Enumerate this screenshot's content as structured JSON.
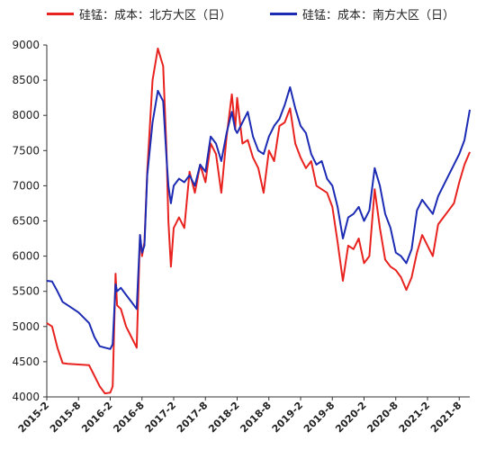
{
  "chart_data": {
    "type": "line",
    "title": "",
    "xlabel": "",
    "ylabel": "",
    "ylim": [
      4000,
      9000
    ],
    "yticks": [
      4000,
      4500,
      5000,
      5500,
      6000,
      6500,
      7000,
      7500,
      8000,
      8500,
      9000
    ],
    "xlim": [
      "2015-02",
      "2021-10"
    ],
    "xticks": [
      "2015-2",
      "2015-8",
      "2016-2",
      "2016-8",
      "2017-2",
      "2017-8",
      "2018-2",
      "2018-8",
      "2019-2",
      "2019-8",
      "2020-2",
      "2020-8",
      "2021-2",
      "2021-8"
    ],
    "grid": false,
    "legend_position": "top",
    "series": [
      {
        "name": "硅锰：成本：北方大区（日）",
        "color": "#e8231f",
        "points": [
          [
            "2015-02",
            5050
          ],
          [
            "2015-03",
            5000
          ],
          [
            "2015-04",
            4700
          ],
          [
            "2015-05",
            4480
          ],
          [
            "2015-06",
            4470
          ],
          [
            "2015-08",
            4460
          ],
          [
            "2015-10",
            4450
          ],
          [
            "2015-11",
            4300
          ],
          [
            "2015-12",
            4150
          ],
          [
            "2016-01",
            4050
          ],
          [
            "2016-02",
            4060
          ],
          [
            "2016-02-15",
            4150
          ],
          [
            "2016-03",
            5750
          ],
          [
            "2016-03-10",
            5300
          ],
          [
            "2016-04",
            5250
          ],
          [
            "2016-05",
            5000
          ],
          [
            "2016-06",
            4850
          ],
          [
            "2016-07",
            4700
          ],
          [
            "2016-07-20",
            6300
          ],
          [
            "2016-08",
            6000
          ],
          [
            "2016-08-15",
            6200
          ],
          [
            "2016-09",
            7200
          ],
          [
            "2016-10",
            8500
          ],
          [
            "2016-11",
            8950
          ],
          [
            "2016-12",
            8700
          ],
          [
            "2016-12-20",
            7500
          ],
          [
            "2017-01",
            6500
          ],
          [
            "2017-01-15",
            5850
          ],
          [
            "2017-02",
            6400
          ],
          [
            "2017-03",
            6550
          ],
          [
            "2017-04",
            6400
          ],
          [
            "2017-05",
            7200
          ],
          [
            "2017-06",
            6900
          ],
          [
            "2017-07",
            7300
          ],
          [
            "2017-08",
            7050
          ],
          [
            "2017-09",
            7600
          ],
          [
            "2017-10",
            7450
          ],
          [
            "2017-11",
            6900
          ],
          [
            "2017-12",
            7700
          ],
          [
            "2018-01",
            8300
          ],
          [
            "2018-01-20",
            7800
          ],
          [
            "2018-02",
            8250
          ],
          [
            "2018-03",
            7600
          ],
          [
            "2018-04",
            7650
          ],
          [
            "2018-05",
            7400
          ],
          [
            "2018-06",
            7250
          ],
          [
            "2018-07",
            6900
          ],
          [
            "2018-08",
            7500
          ],
          [
            "2018-09",
            7350
          ],
          [
            "2018-10",
            7850
          ],
          [
            "2018-11",
            7900
          ],
          [
            "2018-12",
            8100
          ],
          [
            "2019-01",
            7600
          ],
          [
            "2019-02",
            7400
          ],
          [
            "2019-03",
            7250
          ],
          [
            "2019-04",
            7350
          ],
          [
            "2019-05",
            7000
          ],
          [
            "2019-06",
            6950
          ],
          [
            "2019-07",
            6900
          ],
          [
            "2019-08",
            6700
          ],
          [
            "2019-09",
            6200
          ],
          [
            "2019-10",
            5650
          ],
          [
            "2019-11",
            6150
          ],
          [
            "2019-12",
            6100
          ],
          [
            "2020-01",
            6250
          ],
          [
            "2020-02",
            5900
          ],
          [
            "2020-03",
            6000
          ],
          [
            "2020-04",
            6950
          ],
          [
            "2020-05",
            6400
          ],
          [
            "2020-06",
            5950
          ],
          [
            "2020-07",
            5850
          ],
          [
            "2020-08",
            5800
          ],
          [
            "2020-09",
            5700
          ],
          [
            "2020-10",
            5520
          ],
          [
            "2020-11",
            5700
          ],
          [
            "2020-12",
            6050
          ],
          [
            "2021-01",
            6300
          ],
          [
            "2021-02",
            6150
          ],
          [
            "2021-03",
            6000
          ],
          [
            "2021-04",
            6450
          ],
          [
            "2021-05",
            6550
          ],
          [
            "2021-06",
            6650
          ],
          [
            "2021-07",
            6750
          ],
          [
            "2021-08",
            7050
          ],
          [
            "2021-09",
            7300
          ],
          [
            "2021-10",
            7480
          ]
        ]
      },
      {
        "name": "硅锰：成本：南方大区（日）",
        "color": "#1c2bb3",
        "points": [
          [
            "2015-02",
            5650
          ],
          [
            "2015-03",
            5640
          ],
          [
            "2015-04",
            5500
          ],
          [
            "2015-05",
            5350
          ],
          [
            "2015-06",
            5300
          ],
          [
            "2015-08",
            5200
          ],
          [
            "2015-10",
            5050
          ],
          [
            "2015-11",
            4850
          ],
          [
            "2015-12",
            4720
          ],
          [
            "2016-01",
            4700
          ],
          [
            "2016-02",
            4680
          ],
          [
            "2016-02-15",
            4750
          ],
          [
            "2016-03",
            5600
          ],
          [
            "2016-03-10",
            5500
          ],
          [
            "2016-04",
            5550
          ],
          [
            "2016-05",
            5450
          ],
          [
            "2016-06",
            5350
          ],
          [
            "2016-07",
            5250
          ],
          [
            "2016-07-20",
            6300
          ],
          [
            "2016-08",
            6050
          ],
          [
            "2016-08-15",
            6150
          ],
          [
            "2016-09",
            7150
          ],
          [
            "2016-10",
            7900
          ],
          [
            "2016-11",
            8350
          ],
          [
            "2016-12",
            8200
          ],
          [
            "2016-12-20",
            7400
          ],
          [
            "2017-01",
            7000
          ],
          [
            "2017-01-15",
            6750
          ],
          [
            "2017-02",
            7000
          ],
          [
            "2017-03",
            7100
          ],
          [
            "2017-04",
            7050
          ],
          [
            "2017-05",
            7150
          ],
          [
            "2017-06",
            7000
          ],
          [
            "2017-07",
            7300
          ],
          [
            "2017-08",
            7200
          ],
          [
            "2017-09",
            7700
          ],
          [
            "2017-10",
            7600
          ],
          [
            "2017-11",
            7350
          ],
          [
            "2017-12",
            7750
          ],
          [
            "2018-01",
            8050
          ],
          [
            "2018-01-20",
            7800
          ],
          [
            "2018-02",
            7750
          ],
          [
            "2018-03",
            7900
          ],
          [
            "2018-04",
            8050
          ],
          [
            "2018-05",
            7700
          ],
          [
            "2018-06",
            7500
          ],
          [
            "2018-07",
            7450
          ],
          [
            "2018-08",
            7700
          ],
          [
            "2018-09",
            7850
          ],
          [
            "2018-10",
            7950
          ],
          [
            "2018-11",
            8150
          ],
          [
            "2018-12",
            8400
          ],
          [
            "2019-01",
            8100
          ],
          [
            "2019-02",
            7850
          ],
          [
            "2019-03",
            7750
          ],
          [
            "2019-04",
            7450
          ],
          [
            "2019-05",
            7300
          ],
          [
            "2019-06",
            7350
          ],
          [
            "2019-07",
            7100
          ],
          [
            "2019-08",
            7000
          ],
          [
            "2019-09",
            6700
          ],
          [
            "2019-10",
            6250
          ],
          [
            "2019-11",
            6550
          ],
          [
            "2019-12",
            6600
          ],
          [
            "2020-01",
            6700
          ],
          [
            "2020-02",
            6500
          ],
          [
            "2020-03",
            6650
          ],
          [
            "2020-04",
            7250
          ],
          [
            "2020-05",
            7000
          ],
          [
            "2020-06",
            6600
          ],
          [
            "2020-07",
            6400
          ],
          [
            "2020-08",
            6050
          ],
          [
            "2020-09",
            6000
          ],
          [
            "2020-10",
            5900
          ],
          [
            "2020-11",
            6100
          ],
          [
            "2020-12",
            6650
          ],
          [
            "2021-01",
            6800
          ],
          [
            "2021-02",
            6700
          ],
          [
            "2021-03",
            6600
          ],
          [
            "2021-04",
            6850
          ],
          [
            "2021-05",
            7000
          ],
          [
            "2021-06",
            7150
          ],
          [
            "2021-07",
            7300
          ],
          [
            "2021-08",
            7450
          ],
          [
            "2021-09",
            7650
          ],
          [
            "2021-10",
            8080
          ]
        ]
      }
    ]
  }
}
